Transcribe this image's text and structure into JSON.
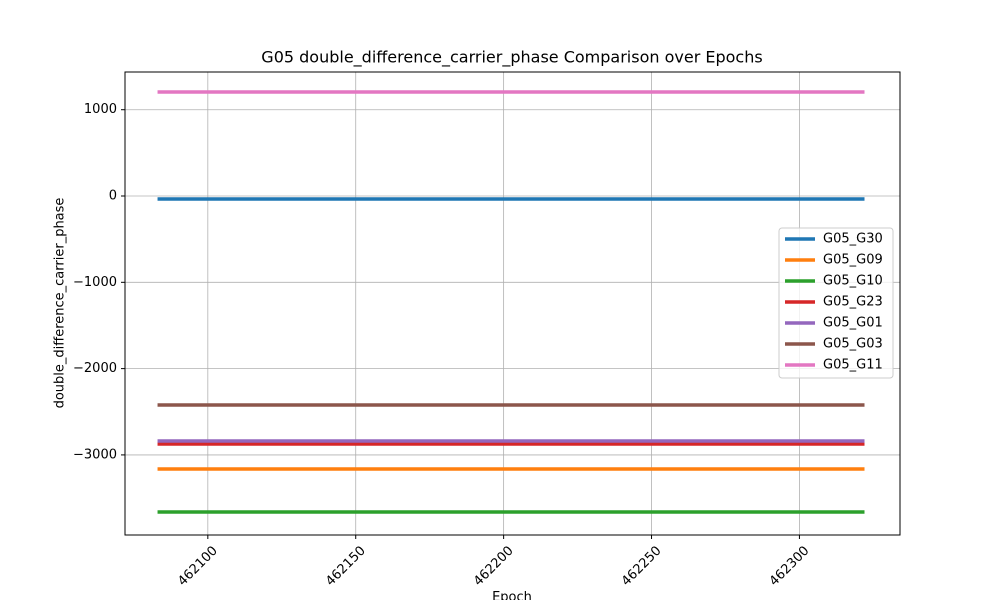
{
  "chart_data": {
    "type": "line",
    "title": "G05 double_difference_carrier_phase Comparison over Epochs",
    "x_label": "Epoch",
    "y_label": "double_difference_carrier_phase",
    "x": [
      462083,
      462322
    ],
    "series": [
      {
        "name": "G05_G30",
        "color": "#1f77b4",
        "values": [
          -35,
          -35
        ]
      },
      {
        "name": "G05_G09",
        "color": "#ff7f0e",
        "values": [
          -3163,
          -3163
        ]
      },
      {
        "name": "G05_G10",
        "color": "#2ca02c",
        "values": [
          -3662,
          -3662
        ]
      },
      {
        "name": "G05_G23",
        "color": "#d62728",
        "values": [
          -2874,
          -2874
        ]
      },
      {
        "name": "G05_G01",
        "color": "#9467bd",
        "values": [
          -2839,
          -2839
        ]
      },
      {
        "name": "G05_G03",
        "color": "#8c564b",
        "values": [
          -2422,
          -2422
        ]
      },
      {
        "name": "G05_G11",
        "color": "#e377c2",
        "values": [
          1205,
          1205
        ]
      }
    ],
    "xlim": [
      462072,
      462334
    ],
    "ylim": [
      -3928,
      1437
    ],
    "xticks": [
      462100,
      462150,
      462200,
      462250,
      462300
    ],
    "yticks": [
      {
        "value": -3000,
        "label": "−3000"
      },
      {
        "value": -2000,
        "label": "−2000"
      },
      {
        "value": -1000,
        "label": "−1000"
      },
      0,
      1000
    ],
    "grid": true,
    "legend": "center right"
  }
}
